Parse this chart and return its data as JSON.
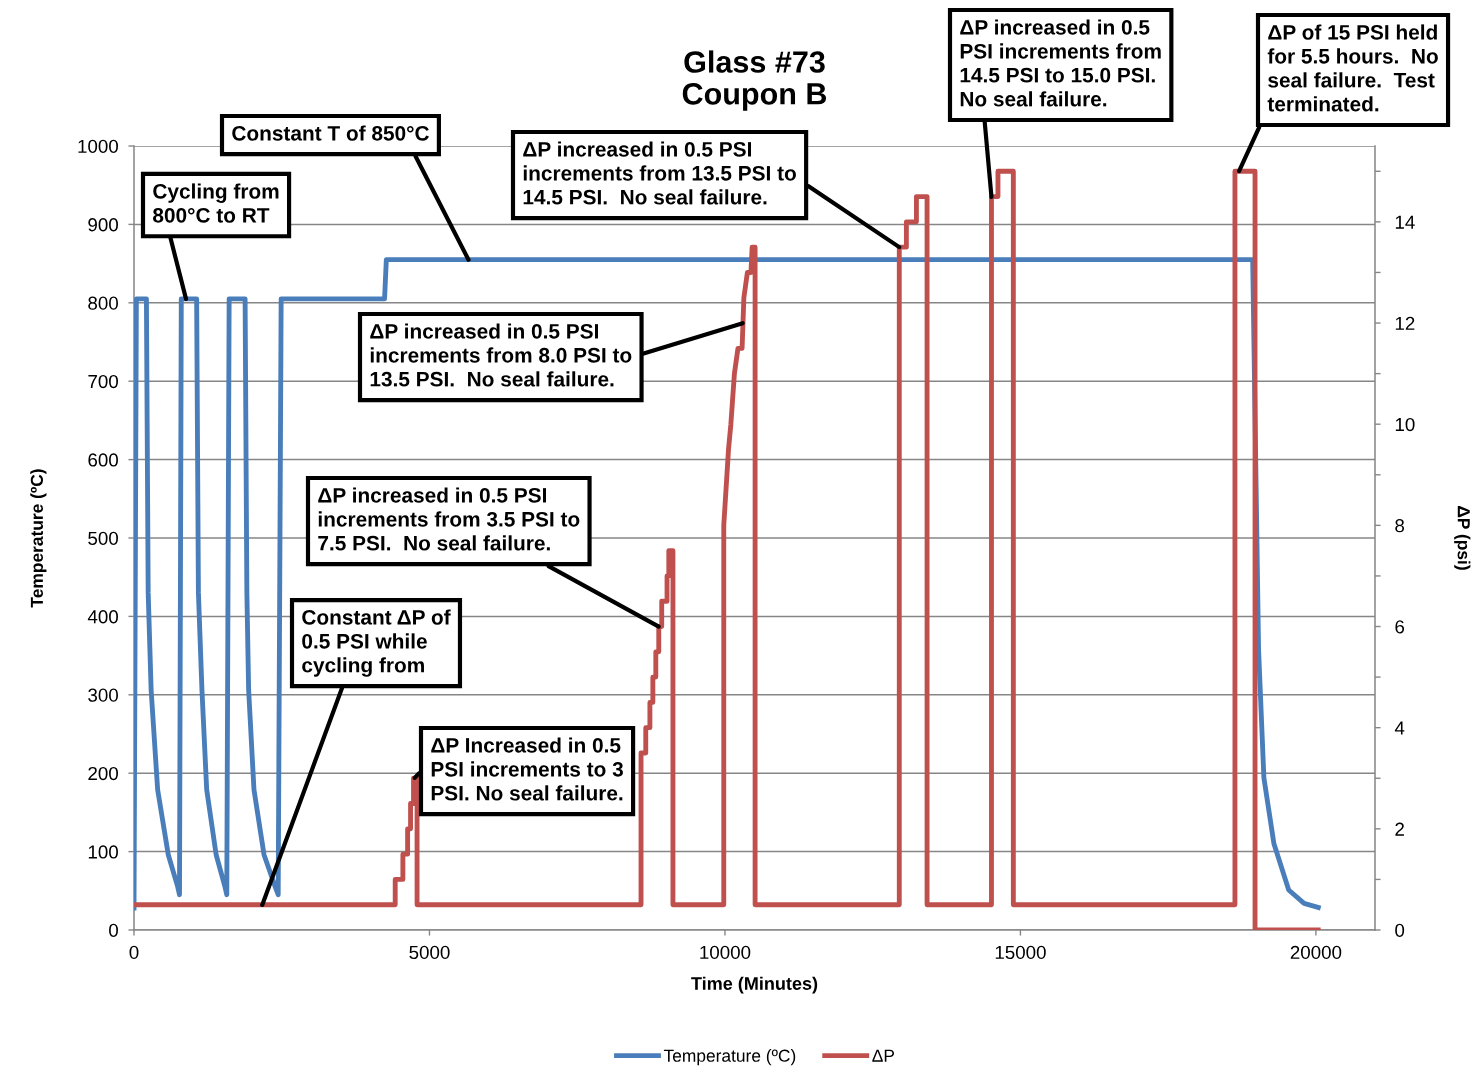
{
  "chart_data": {
    "type": "line",
    "title": "Glass #73\nCoupon B",
    "xlabel": "Time (Minutes)",
    "ylabel": "Temperature (ºC)",
    "y2label": "ΔP (psi)",
    "xlim": [
      0,
      21000
    ],
    "xticks": [
      0,
      5000,
      10000,
      15000,
      20000
    ],
    "ylim": [
      0,
      1000
    ],
    "yticks": [
      0,
      100,
      200,
      300,
      400,
      500,
      600,
      700,
      800,
      900,
      1000
    ],
    "y2lim": [
      0,
      15.5
    ],
    "y2ticks": [
      0,
      {
        "value": 1,
        "label": null
      },
      2,
      {
        "value": 3,
        "label": null
      },
      4,
      {
        "value": 5,
        "label": null
      },
      6,
      {
        "value": 7,
        "label": null
      },
      8,
      {
        "value": 9,
        "label": null
      },
      10,
      {
        "value": 11,
        "label": null
      },
      12,
      {
        "value": 13,
        "label": null
      },
      14,
      {
        "value": 15,
        "label": null
      }
    ],
    "grid": "y",
    "legend": "bottom",
    "series": [
      {
        "name": "Temperature (ºC)",
        "color": "#4a7ebb",
        "x": [
          0,
          40,
          210,
          240,
          290,
          400,
          580,
          740,
          770,
          800,
          1060,
          1090,
          1150,
          1230,
          1390,
          1540,
          1570,
          1610,
          1880,
          1910,
          1940,
          2030,
          2200,
          2390,
          2440,
          2490,
          4240,
          4270,
          18930,
          19030,
          19120,
          19290,
          19540,
          19800,
          20080
        ],
        "values": [
          25,
          805,
          805,
          430,
          306,
          179,
          96,
          55,
          45,
          805,
          805,
          430,
          306,
          179,
          96,
          55,
          45,
          805,
          805,
          430,
          306,
          179,
          96,
          55,
          45,
          805,
          805,
          855,
          855,
          357,
          194,
          110,
          51,
          34,
          28
        ]
      },
      {
        "name": "ΔP",
        "color": "#c0504d",
        "axis": "y2",
        "x": [
          0,
          4420,
          4420,
          4550,
          4550,
          4630,
          4630,
          4680,
          4680,
          4730,
          4730,
          4790,
          4790,
          8580,
          8580,
          8660,
          8660,
          8730,
          8730,
          8780,
          8780,
          8830,
          8830,
          8880,
          8880,
          8930,
          8930,
          9020,
          9020,
          9050,
          9050,
          9120,
          9120,
          9980,
          9980,
          10060,
          10100,
          10160,
          10220,
          10290,
          10320,
          10380,
          10440,
          10460,
          10510,
          10510,
          12950,
          12950,
          13070,
          13070,
          13240,
          13240,
          13420,
          13420,
          14510,
          14510,
          14620,
          14620,
          14880,
          14880,
          18630,
          18630,
          18970,
          18970,
          20080
        ],
        "values": [
          0.5,
          0.5,
          1,
          1,
          1.5,
          1.5,
          2,
          2,
          2.5,
          2.5,
          3,
          3,
          0.5,
          0.5,
          3.5,
          3.5,
          4,
          4,
          4.5,
          4.5,
          5,
          5,
          5.5,
          5.5,
          6,
          6,
          6.5,
          6.5,
          7,
          7,
          7.5,
          7.5,
          0.5,
          0.5,
          8,
          9.5,
          10,
          11,
          11.5,
          11.5,
          12.5,
          13,
          13,
          13.5,
          13.5,
          0.5,
          0.5,
          13.5,
          13.5,
          14,
          14,
          14.5,
          14.5,
          0.5,
          0.5,
          14.5,
          14.5,
          15,
          15,
          0.5,
          0.5,
          15,
          15,
          0,
          0
        ]
      }
    ],
    "annotations": [
      {
        "text": "ΔP increased in 0.5\nPSI increments from\n14.5 PSI to 15.0 PSI.\nNo seal failure.",
        "x": 14510,
        "y": 935
      },
      {
        "text": "ΔP of 15 PSI held\nfor 5.5 hours.  No\nseal failure.  Test\nterminated.",
        "x": 18700,
        "y": 968
      },
      {
        "text": "Constant T of 850°C",
        "x": 5660,
        "y": 855
      },
      {
        "text": "ΔP increased in 0.5 PSI\nincrements from 13.5 PSI to\n14.5 PSI.  No seal failure.",
        "x": 12950,
        "y": 871
      },
      {
        "text": "Cycling from\n800°C to RT",
        "x": 880,
        "y": 805
      },
      {
        "text": "ΔP increased in 0.5 PSI\nincrements from 8.0 PSI to\n13.5 PSI.  No seal failure.",
        "x": 10300,
        "y": 774
      },
      {
        "text": "ΔP increased in 0.5 PSI\nincrements from 3.5 PSI to\n7.5 PSI.  No seal failure.",
        "x": 8880,
        "y": 387
      },
      {
        "text": "Constant ΔP of\n0.5 PSI while\ncycling from",
        "x": 2170,
        "y": 32
      },
      {
        "text": "ΔP Increased in 0.5\nPSI increments to 3\nPSI. No seal failure.",
        "x": 4750,
        "y": 194
      }
    ]
  }
}
